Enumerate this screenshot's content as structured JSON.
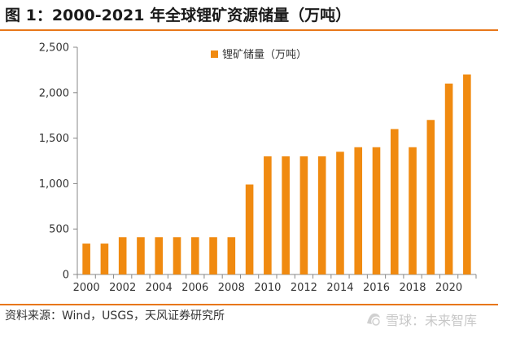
{
  "header": {
    "title": "图 1：2000-2021 年全球锂矿资源储量（万吨）"
  },
  "footer": {
    "source": "资料来源：Wind，USGS，天风证券研究所",
    "watermark": "雪球：未来智库"
  },
  "colors": {
    "accent": "#E8771A",
    "bar": "#F08A10",
    "axis": "#888888"
  },
  "chart_data": {
    "type": "bar",
    "categories": [
      "2000",
      "2001",
      "2002",
      "2003",
      "2004",
      "2005",
      "2006",
      "2007",
      "2008",
      "2009",
      "2010",
      "2011",
      "2012",
      "2013",
      "2014",
      "2015",
      "2016",
      "2017",
      "2018",
      "2019",
      "2020",
      "2021"
    ],
    "x_tick_labels": [
      "2000",
      "2002",
      "2004",
      "2006",
      "2008",
      "2010",
      "2012",
      "2014",
      "2016",
      "2018",
      "2020"
    ],
    "series": [
      {
        "name": "锂矿储量（万吨）",
        "values": [
          340,
          340,
          410,
          410,
          410,
          410,
          410,
          410,
          410,
          990,
          1300,
          1300,
          1300,
          1300,
          1350,
          1400,
          1400,
          1600,
          1400,
          1700,
          2100,
          2200
        ]
      }
    ],
    "y_tick_labels": [
      "0",
      "500",
      "1,000",
      "1,500",
      "2,000",
      "2,500"
    ],
    "ylim": [
      0,
      2500
    ],
    "xlabel": "",
    "ylabel": "",
    "grid": false,
    "legend_position": "top-center"
  }
}
